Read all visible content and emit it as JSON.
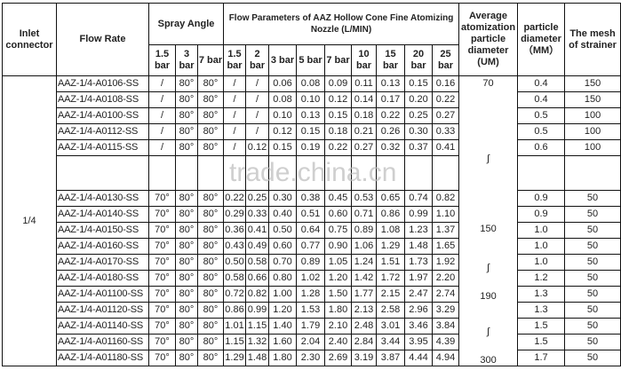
{
  "headers": {
    "inlet": "Inlet connector",
    "flow_rate": "Flow  Rate",
    "spray_angle": "Spray Angle",
    "flow_params": "Flow Parameters of  AAZ  Hollow Cone Fine Atomizing  Nozzle (L/MIN)",
    "avg_diameter": "Average atomization particle diameter (UM)",
    "particle_diameter": "particle diameter （MM）",
    "mesh": "The mesh of strainer",
    "spray_pressures": [
      "1.5 bar",
      "3 bar",
      "7 bar"
    ],
    "flow_pressures": [
      "1.5 bar",
      "2 bar",
      "3 bar",
      "5 bar",
      "7 bar",
      "10 bar",
      "15 bar",
      "20 bar",
      "25 bar"
    ]
  },
  "inlet_value": "1/4",
  "avg_diameter_labels": [
    "70",
    "∫",
    "150",
    "∫",
    "190",
    "∫",
    "300"
  ],
  "watermark": "trade.china.cn",
  "rows_top": [
    {
      "model": "AAZ-1/4-A0106-SS",
      "spray": [
        "/",
        "80°",
        "80°"
      ],
      "flow": [
        "/",
        "/",
        "0.06",
        "0.08",
        "0.09",
        "0.11",
        "0.13",
        "0.15",
        "0.16"
      ],
      "particle": "0.4",
      "mesh": "150"
    },
    {
      "model": "AAZ-1/4-A0108-SS",
      "spray": [
        "/",
        "80°",
        "80°"
      ],
      "flow": [
        "/",
        "/",
        "0.08",
        "0.10",
        "0.12",
        "0.14",
        "0.17",
        "0.20",
        "0.22"
      ],
      "particle": "0.4",
      "mesh": "150"
    },
    {
      "model": "AAZ-1/4-A0100-SS",
      "spray": [
        "/",
        "80°",
        "80°"
      ],
      "flow": [
        "/",
        "/",
        "0.10",
        "0.13",
        "0.15",
        "0.18",
        "0.22",
        "0.25",
        "0.27"
      ],
      "particle": "0.5",
      "mesh": "100"
    },
    {
      "model": "AAZ-1/4-A0112-SS",
      "spray": [
        "/",
        "80°",
        "80°"
      ],
      "flow": [
        "/",
        "/",
        "0.12",
        "0.15",
        "0.18",
        "0.21",
        "0.26",
        "0.30",
        "0.33"
      ],
      "particle": "0.5",
      "mesh": "100"
    },
    {
      "model": "AAZ-1/4-A0115-SS",
      "spray": [
        "/",
        "80°",
        "80°"
      ],
      "flow": [
        "/",
        "0.12",
        "0.15",
        "0.19",
        "0.22",
        "0.27",
        "0.32",
        "0.37",
        "0.41"
      ],
      "particle": "0.6",
      "mesh": "100"
    }
  ],
  "rows_bottom": [
    {
      "model": "AAZ-1/4-A0130-SS",
      "spray": [
        "70°",
        "80°",
        "80°"
      ],
      "flow": [
        "0.22",
        "0.25",
        "0.30",
        "0.38",
        "0.45",
        "0.53",
        "0.65",
        "0.74",
        "0.82"
      ],
      "particle": "0.9",
      "mesh": "50"
    },
    {
      "model": "AAZ-1/4-A0140-SS",
      "spray": [
        "70°",
        "80°",
        "80°"
      ],
      "flow": [
        "0.29",
        "0.33",
        "0.40",
        "0.51",
        "0.60",
        "0.71",
        "0.86",
        "0.99",
        "1.10"
      ],
      "particle": "0.9",
      "mesh": "50"
    },
    {
      "model": "AAZ-1/4-A0150-SS",
      "spray": [
        "70°",
        "80°",
        "80°"
      ],
      "flow": [
        "0.36",
        "0.41",
        "0.50",
        "0.64",
        "0.75",
        "0.89",
        "1.08",
        "1.23",
        "1.37"
      ],
      "particle": "1.0",
      "mesh": "50"
    },
    {
      "model": "AAZ-1/4-A0160-SS",
      "spray": [
        "70°",
        "80°",
        "80°"
      ],
      "flow": [
        "0.43",
        "0.49",
        "0.60",
        "0.77",
        "0.90",
        "1.06",
        "1.29",
        "1.48",
        "1.65"
      ],
      "particle": "1.0",
      "mesh": "50"
    },
    {
      "model": "AAZ-1/4-A0170-SS",
      "spray": [
        "70°",
        "80°",
        "80°"
      ],
      "flow": [
        "0.50",
        "0.58",
        "0.70",
        "0.89",
        "1.05",
        "1.24",
        "1.51",
        "1.73",
        "1.92"
      ],
      "particle": "1.0",
      "mesh": "50"
    },
    {
      "model": "AAZ-1/4-A0180-SS",
      "spray": [
        "70°",
        "80°",
        "80°"
      ],
      "flow": [
        "0.58",
        "0.66",
        "0.80",
        "1.02",
        "1.20",
        "1.42",
        "1.72",
        "1.97",
        "2.20"
      ],
      "particle": "1.2",
      "mesh": "50"
    },
    {
      "model": "AAZ-1/4-A01100-SS",
      "spray": [
        "70°",
        "80°",
        "80°"
      ],
      "flow": [
        "0.72",
        "0.82",
        "1.00",
        "1.28",
        "1.50",
        "1.77",
        "2.15",
        "2.47",
        "2.74"
      ],
      "particle": "1.3",
      "mesh": "50"
    },
    {
      "model": "AAZ-1/4-A01120-SS",
      "spray": [
        "70°",
        "80°",
        "80°"
      ],
      "flow": [
        "0.86",
        "0.99",
        "1.20",
        "1.53",
        "1.80",
        "2.13",
        "2.58",
        "2.96",
        "3.29"
      ],
      "particle": "1.3",
      "mesh": "50"
    },
    {
      "model": "AAZ-1/4-A01140-SS",
      "spray": [
        "70°",
        "80°",
        "80°"
      ],
      "flow": [
        "1.01",
        "1.15",
        "1.40",
        "1.79",
        "2.10",
        "2.48",
        "3.01",
        "3.46",
        "3.84"
      ],
      "particle": "1.5",
      "mesh": "50"
    },
    {
      "model": "AAZ-1/4-A01160-SS",
      "spray": [
        "70°",
        "80°",
        "80°"
      ],
      "flow": [
        "1.15",
        "1.32",
        "1.60",
        "2.04",
        "2.40",
        "2.84",
        "3.44",
        "3.95",
        "4.39"
      ],
      "particle": "1.5",
      "mesh": "50"
    },
    {
      "model": "AAZ-1/4-A01180-SS",
      "spray": [
        "70°",
        "80°",
        "80°"
      ],
      "flow": [
        "1.29",
        "1.48",
        "1.80",
        "2.30",
        "2.69",
        "3.19",
        "3.87",
        "4.44",
        "4.94"
      ],
      "particle": "1.7",
      "mesh": "50"
    }
  ]
}
